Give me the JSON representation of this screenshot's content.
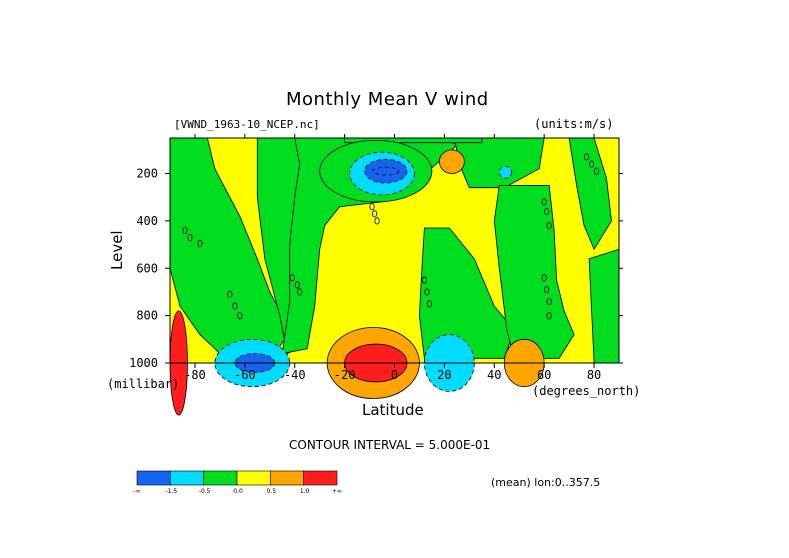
{
  "chart_data": {
    "type": "heatmap",
    "title": "Monthly Mean V wind",
    "dataset_label": "[VWND_1963-10_NCEP.nc]",
    "units_label": "(units:m/s)",
    "xlabel": "Latitude",
    "x_units": "(degrees_north)",
    "ylabel": "Level",
    "y_units": "(millibar)",
    "xlim": [
      -90,
      90
    ],
    "ylim": [
      1000,
      50
    ],
    "x_ticks": [
      -80,
      -60,
      -40,
      -20,
      0,
      20,
      40,
      60,
      80
    ],
    "x_tick_labels": [
      "-80",
      "-60",
      "-40",
      "-20",
      "0",
      "20",
      "40",
      "60",
      "80"
    ],
    "y_ticks": [
      200,
      400,
      600,
      800,
      1000
    ],
    "y_tick_labels": [
      "200",
      "400",
      "600",
      "800",
      "1000"
    ],
    "contour_interval_label": "CONTOUR INTERVAL = 5.000E-01",
    "mean_label": "(mean) lon:0..357.5",
    "colorbar": {
      "boundaries": [
        "-∞",
        "-1.5",
        "-0.5",
        "0.0",
        "0.5",
        "1.0",
        "+∞"
      ],
      "tick_labels": [
        "-1.5",
        "-0.5",
        "0.0",
        "0.5",
        "1.0"
      ],
      "colors": [
        "#1464f0",
        "#00dcff",
        "#00dc1e",
        "#ffff00",
        "#ffa500",
        "#ff1e1e"
      ]
    },
    "regions": [
      {
        "name": "upper-mid-blue",
        "level": -2,
        "lat_range": [
          -12,
          5
        ],
        "p_range": [
          140,
          240
        ]
      },
      {
        "name": "upper-mid-cyan",
        "level": -1,
        "lat_range": [
          -18,
          8
        ],
        "p_range": [
          110,
          290
        ]
      },
      {
        "name": "upper-mid-green",
        "level": 0,
        "lat_range": [
          -30,
          15
        ],
        "p_range": [
          60,
          320
        ]
      },
      {
        "name": "surface-south-red",
        "level": 3,
        "lat_range": [
          -20,
          5
        ],
        "p_range": [
          920,
          1000
        ]
      },
      {
        "name": "surface-south-orange",
        "level": 2,
        "lat_range": [
          -27,
          10
        ],
        "p_range": [
          850,
          1000
        ]
      },
      {
        "name": "surface-60s-blue",
        "level": -2,
        "lat_range": [
          -64,
          -48
        ],
        "p_range": [
          960,
          1000
        ]
      },
      {
        "name": "surface-60s-cyan",
        "level": -1,
        "lat_range": [
          -72,
          -42
        ],
        "p_range": [
          900,
          1000
        ]
      },
      {
        "name": "surface-20n-cyan",
        "level": -1,
        "lat_range": [
          12,
          32
        ],
        "p_range": [
          880,
          1000
        ]
      },
      {
        "name": "surface-50n-orange",
        "level": 2,
        "lat_range": [
          44,
          60
        ],
        "p_range": [
          900,
          1000
        ]
      },
      {
        "name": "surface-polar-south-red",
        "level": 3,
        "lat_range": [
          -90,
          -83
        ],
        "p_range": [
          780,
          1000
        ]
      },
      {
        "name": "upper-15n-orange",
        "level": 2,
        "lat_range": [
          18,
          28
        ],
        "p_range": [
          100,
          200
        ]
      },
      {
        "name": "upper-45n-cyan",
        "level": -1,
        "lat_range": [
          42,
          47
        ],
        "p_range": [
          170,
          220
        ]
      }
    ]
  }
}
